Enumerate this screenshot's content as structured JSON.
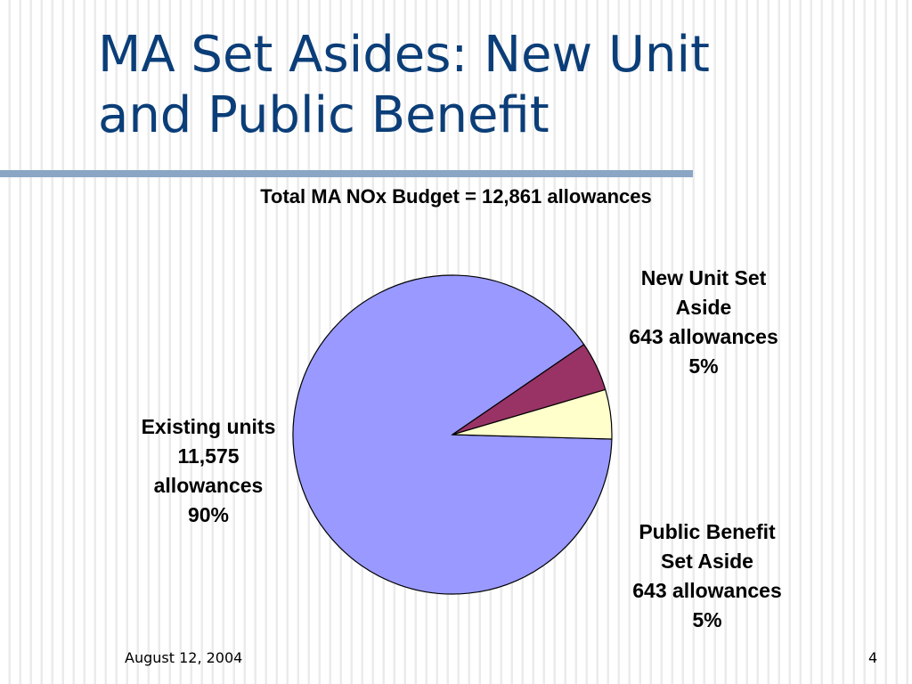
{
  "slide": {
    "title": "MA Set Asides: New Unit\nand Public Benefit",
    "footer_date": "August 12, 2004",
    "page_number": "4"
  },
  "chart_data": {
    "type": "pie",
    "title": "Total MA NOx Budget = 12,861 allowances",
    "slices": [
      {
        "label_lines": [
          "Existing units",
          "11,575",
          "allowances",
          "90%"
        ],
        "value": 11575,
        "percent": "90%",
        "color": "#9999ff"
      },
      {
        "label_lines": [
          "New Unit Set",
          "Aside",
          "643 allowances",
          "5%"
        ],
        "value": 643,
        "percent": "5%",
        "color": "#993366"
      },
      {
        "label_lines": [
          "Public Benefit",
          "Set Aside",
          "643 allowances",
          "5%"
        ],
        "value": 643,
        "percent": "5%",
        "color": "#ffffcc"
      }
    ]
  }
}
